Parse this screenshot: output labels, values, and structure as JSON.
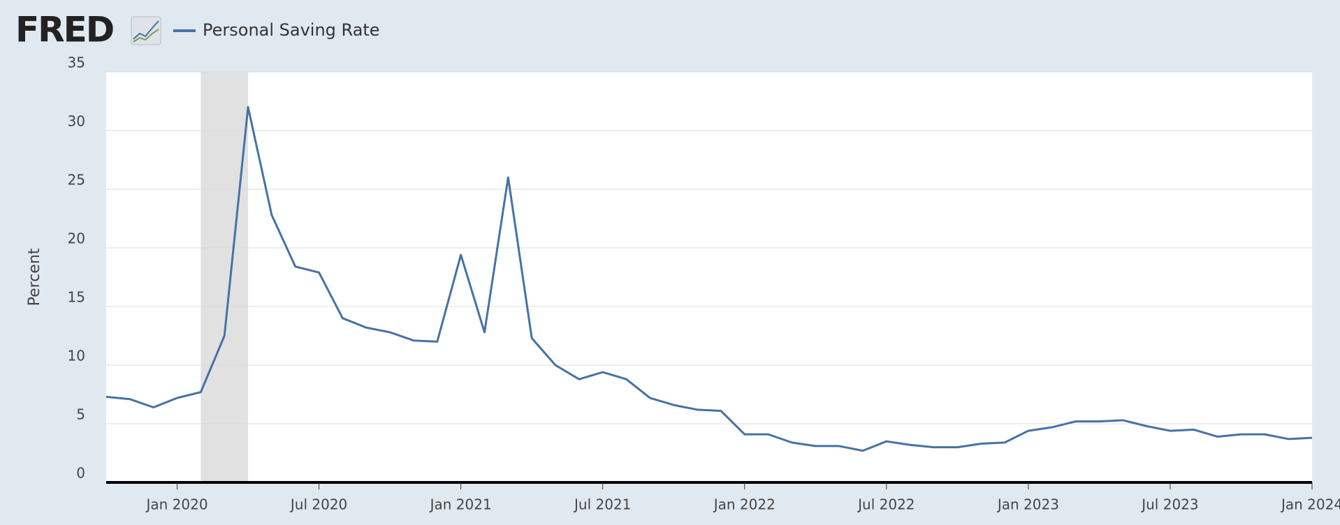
{
  "logo": "FRED",
  "chart_data": {
    "type": "line",
    "y_label": "Percent",
    "x": [
      "2019-10",
      "2019-11",
      "2019-12",
      "2020-01",
      "2020-02",
      "2020-03",
      "2020-04",
      "2020-05",
      "2020-06",
      "2020-07",
      "2020-08",
      "2020-09",
      "2020-10",
      "2020-11",
      "2020-12",
      "2021-01",
      "2021-02",
      "2021-03",
      "2021-04",
      "2021-05",
      "2021-06",
      "2021-07",
      "2021-08",
      "2021-09",
      "2021-10",
      "2021-11",
      "2021-12",
      "2022-01",
      "2022-02",
      "2022-03",
      "2022-04",
      "2022-05",
      "2022-06",
      "2022-07",
      "2022-08",
      "2022-09",
      "2022-10",
      "2022-11",
      "2022-12",
      "2023-01",
      "2023-02",
      "2023-03",
      "2023-04",
      "2023-05",
      "2023-06",
      "2023-07",
      "2023-08",
      "2023-09",
      "2023-10",
      "2023-11",
      "2023-12",
      "2024-01"
    ],
    "series": [
      {
        "name": "Personal Saving Rate",
        "color": "#4572a7",
        "values": [
          7.3,
          7.1,
          6.4,
          7.2,
          7.7,
          12.5,
          32.0,
          22.8,
          18.4,
          17.9,
          14.0,
          13.2,
          12.8,
          12.1,
          12.0,
          19.4,
          12.8,
          26.0,
          12.3,
          10.0,
          8.8,
          9.4,
          8.8,
          7.2,
          6.6,
          6.2,
          6.1,
          4.1,
          4.1,
          3.4,
          3.1,
          3.1,
          2.7,
          3.5,
          3.2,
          3.0,
          3.0,
          3.3,
          3.4,
          4.4,
          4.7,
          5.2,
          5.2,
          5.3,
          4.8,
          4.4,
          4.5,
          3.9,
          4.1,
          4.1,
          3.7,
          3.8
        ]
      }
    ],
    "xlim": [
      "2019-10",
      "2024-01"
    ],
    "xticks": [
      {
        "value": "2020-01",
        "label": "Jan 2020"
      },
      {
        "value": "2020-07",
        "label": "Jul 2020"
      },
      {
        "value": "2021-01",
        "label": "Jan 2021"
      },
      {
        "value": "2021-07",
        "label": "Jul 2021"
      },
      {
        "value": "2022-01",
        "label": "Jan 2022"
      },
      {
        "value": "2022-07",
        "label": "Jul 2022"
      },
      {
        "value": "2023-01",
        "label": "Jan 2023"
      },
      {
        "value": "2023-07",
        "label": "Jul 2023"
      },
      {
        "value": "2024-01",
        "label": "Jan 2024"
      }
    ],
    "ylim": [
      0,
      35
    ],
    "yticks": [
      0,
      5,
      10,
      15,
      20,
      25,
      30,
      35
    ],
    "grid": true,
    "recession": [
      "2020-02",
      "2020-04"
    ]
  }
}
